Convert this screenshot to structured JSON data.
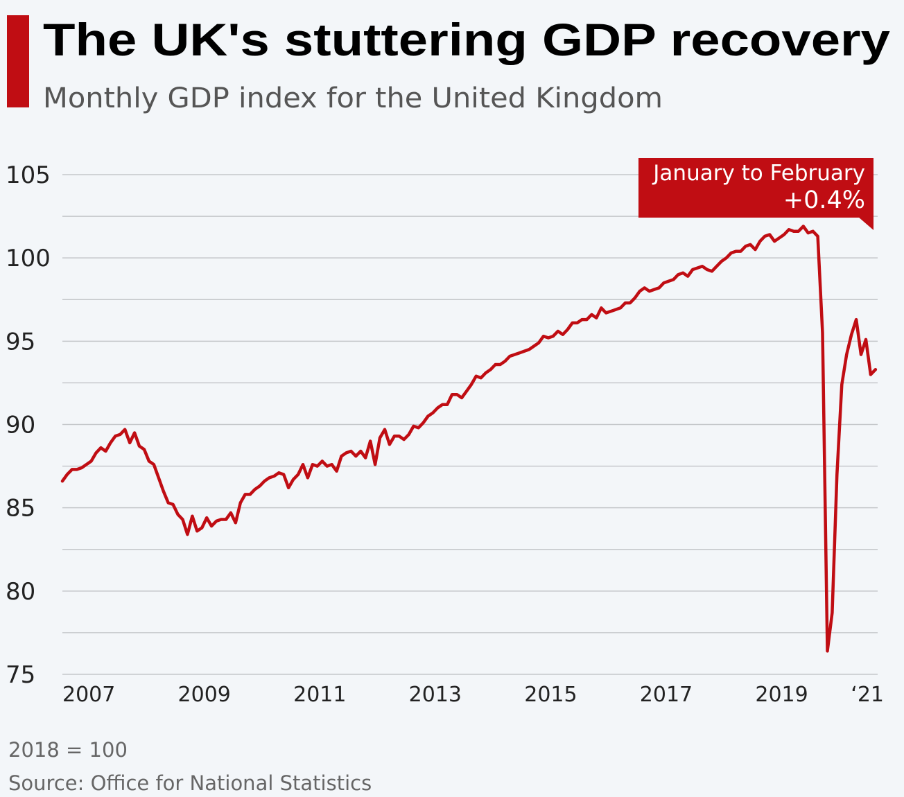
{
  "title": "The UK's stuttering GDP recovery",
  "subtitle": "Monthly GDP index for the United Kingdom",
  "colors": {
    "accent": "#c00d13",
    "line": "#c00d13",
    "grid": "#c4c7ca",
    "background": "#f3f6f9"
  },
  "footer": {
    "note": "2018 = 100",
    "source": "Source: Office for National Statistics"
  },
  "chart_data": {
    "type": "line",
    "title": "The UK's stuttering GDP recovery",
    "subtitle": "Monthly GDP index for the United Kingdom",
    "xlabel": "",
    "ylabel": "",
    "ylim": [
      75,
      105
    ],
    "yticks": [
      75,
      80,
      85,
      90,
      95,
      100,
      105
    ],
    "grid_step": 2.5,
    "grid": true,
    "xticks": [
      {
        "x": "2007-01",
        "label": "2007"
      },
      {
        "x": "2009-01",
        "label": "2009"
      },
      {
        "x": "2011-01",
        "label": "2011"
      },
      {
        "x": "2013-01",
        "label": "2013"
      },
      {
        "x": "2015-01",
        "label": "2015"
      },
      {
        "x": "2017-01",
        "label": "2017"
      },
      {
        "x": "2019-01",
        "label": "2019"
      },
      {
        "x": "2021-01",
        "label": "‘21"
      }
    ],
    "annotation": {
      "line1": "January to February",
      "line2": "+0.4%"
    },
    "series": [
      {
        "x": [
          "2007-01",
          "2007-02",
          "2007-03",
          "2007-04",
          "2007-05",
          "2007-06",
          "2007-07",
          "2007-08",
          "2007-09",
          "2007-10",
          "2007-11",
          "2007-12",
          "2008-01",
          "2008-02",
          "2008-03",
          "2008-04",
          "2008-05",
          "2008-06",
          "2008-07",
          "2008-08",
          "2008-09",
          "2008-10",
          "2008-11",
          "2008-12",
          "2009-01",
          "2009-02",
          "2009-03",
          "2009-04",
          "2009-05",
          "2009-06",
          "2009-07",
          "2009-08",
          "2009-09",
          "2009-10",
          "2009-11",
          "2009-12",
          "2010-01",
          "2010-02",
          "2010-03",
          "2010-04",
          "2010-05",
          "2010-06",
          "2010-07",
          "2010-08",
          "2010-09",
          "2010-10",
          "2010-11",
          "2010-12",
          "2011-01",
          "2011-02",
          "2011-03",
          "2011-04",
          "2011-05",
          "2011-06",
          "2011-07",
          "2011-08",
          "2011-09",
          "2011-10",
          "2011-11",
          "2011-12",
          "2012-01",
          "2012-02",
          "2012-03",
          "2012-04",
          "2012-05",
          "2012-06",
          "2012-07",
          "2012-08",
          "2012-09",
          "2012-10",
          "2012-11",
          "2012-12",
          "2013-01",
          "2013-02",
          "2013-03",
          "2013-04",
          "2013-05",
          "2013-06",
          "2013-07",
          "2013-08",
          "2013-09",
          "2013-10",
          "2013-11",
          "2013-12",
          "2014-01",
          "2014-02",
          "2014-03",
          "2014-04",
          "2014-05",
          "2014-06",
          "2014-07",
          "2014-08",
          "2014-09",
          "2014-10",
          "2014-11",
          "2014-12",
          "2015-01",
          "2015-02",
          "2015-03",
          "2015-04",
          "2015-05",
          "2015-06",
          "2015-07",
          "2015-08",
          "2015-09",
          "2015-10",
          "2015-11",
          "2015-12",
          "2016-01",
          "2016-02",
          "2016-03",
          "2016-04",
          "2016-05",
          "2016-06",
          "2016-07",
          "2016-08",
          "2016-09",
          "2016-10",
          "2016-11",
          "2016-12",
          "2017-01",
          "2017-02",
          "2017-03",
          "2017-04",
          "2017-05",
          "2017-06",
          "2017-07",
          "2017-08",
          "2017-09",
          "2017-10",
          "2017-11",
          "2017-12",
          "2018-01",
          "2018-02",
          "2018-03",
          "2018-04",
          "2018-05",
          "2018-06",
          "2018-07",
          "2018-08",
          "2018-09",
          "2018-10",
          "2018-11",
          "2018-12",
          "2019-01",
          "2019-02",
          "2019-03",
          "2019-04",
          "2019-05",
          "2019-06",
          "2019-07",
          "2019-08",
          "2019-09",
          "2019-10",
          "2019-11",
          "2019-12",
          "2020-01",
          "2020-02",
          "2020-03",
          "2020-04",
          "2020-05",
          "2020-06",
          "2020-07",
          "2020-08",
          "2020-09",
          "2020-10",
          "2020-11",
          "2020-12",
          "2021-01",
          "2021-02"
        ],
        "values": [
          86.6,
          87.0,
          87.3,
          87.3,
          87.4,
          87.6,
          87.8,
          88.3,
          88.6,
          88.4,
          88.9,
          89.3,
          89.4,
          89.7,
          88.9,
          89.5,
          88.7,
          88.5,
          87.8,
          87.6,
          86.8,
          86.0,
          85.3,
          85.2,
          84.6,
          84.3,
          83.4,
          84.5,
          83.6,
          83.8,
          84.4,
          83.9,
          84.2,
          84.3,
          84.3,
          84.7,
          84.1,
          85.3,
          85.8,
          85.8,
          86.1,
          86.3,
          86.6,
          86.8,
          86.9,
          87.1,
          87.0,
          86.2,
          86.7,
          87.0,
          87.6,
          86.8,
          87.6,
          87.5,
          87.8,
          87.5,
          87.6,
          87.2,
          88.1,
          88.3,
          88.4,
          88.1,
          88.4,
          88.0,
          89.0,
          87.6,
          89.2,
          89.7,
          88.8,
          89.3,
          89.3,
          89.1,
          89.4,
          89.9,
          89.8,
          90.1,
          90.5,
          90.7,
          91.0,
          91.2,
          91.2,
          91.8,
          91.8,
          91.6,
          92.0,
          92.4,
          92.9,
          92.8,
          93.1,
          93.3,
          93.6,
          93.6,
          93.8,
          94.1,
          94.2,
          94.3,
          94.4,
          94.5,
          94.7,
          94.9,
          95.3,
          95.2,
          95.3,
          95.6,
          95.4,
          95.7,
          96.1,
          96.1,
          96.3,
          96.3,
          96.6,
          96.4,
          97.0,
          96.7,
          96.8,
          96.9,
          97.0,
          97.3,
          97.3,
          97.6,
          98.0,
          98.2,
          98.0,
          98.1,
          98.2,
          98.5,
          98.6,
          98.7,
          99.0,
          99.1,
          98.9,
          99.3,
          99.4,
          99.5,
          99.3,
          99.2,
          99.5,
          99.8,
          100.0,
          100.3,
          100.4,
          100.4,
          100.7,
          100.8,
          100.5,
          101.0,
          101.3,
          101.4,
          101.0,
          101.2,
          101.4,
          101.7,
          101.6,
          101.6,
          101.9,
          101.5,
          101.6,
          101.3,
          95.5,
          76.4,
          78.7,
          87.0,
          92.4,
          94.2,
          95.4,
          96.3,
          94.2,
          95.1,
          93.0,
          93.3
        ]
      }
    ]
  }
}
